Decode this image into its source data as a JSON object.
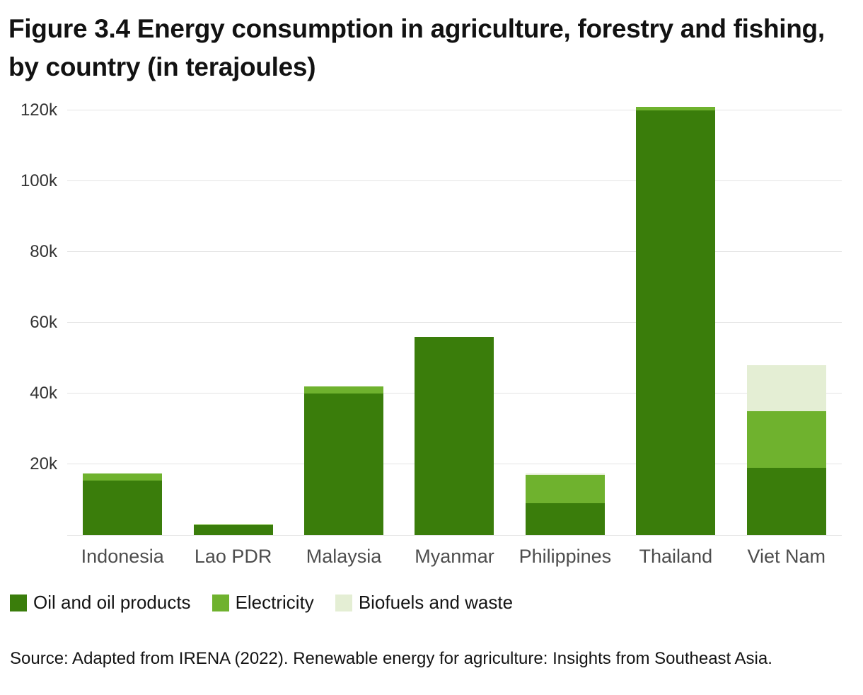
{
  "title": "Figure 3.4 Energy consumption in agriculture, forestry and fishing, by country (in terajoules)",
  "source_note": "Source: Adapted from IRENA (2022). Renewable energy for agriculture: Insights from Southeast Asia.",
  "colors": {
    "oil_and_oil_products": "#3a7d0b",
    "electricity": "#6fb22e",
    "biofuels_and_waste": "#e4eed4",
    "gridline": "#e3e3e3",
    "tick_text": "#333333",
    "category_text": "#4d4d4d"
  },
  "chart_data": {
    "type": "bar",
    "stacked": true,
    "title": "Figure 3.4 Energy consumption in agriculture, forestry and fishing, by country (in terajoules)",
    "unit": "terajoules",
    "categories": [
      "Indonesia",
      "Lao PDR",
      "Malaysia",
      "Myanmar",
      "Philippines",
      "Thailand",
      "Viet Nam"
    ],
    "series": [
      {
        "name": "Oil and oil products",
        "color": "#3a7d0b",
        "values": [
          15500,
          2800,
          40000,
          56000,
          9000,
          120000,
          19000
        ]
      },
      {
        "name": "Electricity",
        "color": "#6fb22e",
        "values": [
          2000,
          200,
          2000,
          0,
          8000,
          1000,
          16000
        ]
      },
      {
        "name": "Biofuels and waste",
        "color": "#e4eed4",
        "values": [
          0,
          0,
          0,
          0,
          500,
          0,
          13000
        ]
      }
    ],
    "totals": [
      17500,
      3000,
      42000,
      56000,
      17500,
      121000,
      48000
    ],
    "xlabel": "",
    "ylabel": "",
    "ylim": [
      0,
      120000
    ],
    "yticks": [
      {
        "value": 20000,
        "label": "20k"
      },
      {
        "value": 40000,
        "label": "40k"
      },
      {
        "value": 60000,
        "label": "60k"
      },
      {
        "value": 80000,
        "label": "80k"
      },
      {
        "value": 100000,
        "label": "100k"
      },
      {
        "value": 120000,
        "label": "120k"
      }
    ],
    "grid": true,
    "legend_position": "bottom-left"
  }
}
